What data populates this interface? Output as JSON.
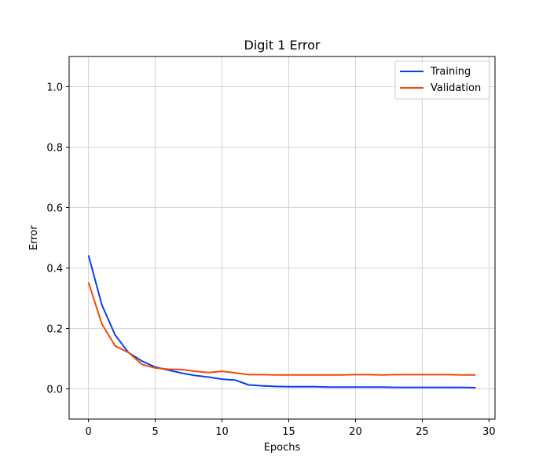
{
  "chart_data": {
    "type": "line",
    "title": "Digit 1 Error",
    "xlabel": "Epochs",
    "ylabel": "Error",
    "xlim": [
      -1.45,
      30.45
    ],
    "ylim": [
      -0.1,
      1.1
    ],
    "xticks": [
      0,
      5,
      10,
      15,
      20,
      25,
      30
    ],
    "xtick_labels": [
      "0",
      "5",
      "10",
      "15",
      "20",
      "25",
      "30"
    ],
    "yticks": [
      0.0,
      0.2,
      0.4,
      0.6,
      0.8,
      1.0
    ],
    "ytick_labels": [
      "0.0",
      "0.2",
      "0.4",
      "0.6",
      "0.8",
      "1.0"
    ],
    "grid": true,
    "legend_position": "top-right",
    "x": [
      0,
      1,
      2,
      3,
      4,
      5,
      6,
      7,
      8,
      9,
      10,
      11,
      12,
      13,
      14,
      15,
      16,
      17,
      18,
      19,
      20,
      21,
      22,
      23,
      24,
      25,
      26,
      27,
      28,
      29
    ],
    "series": [
      {
        "name": "Training",
        "color": "#0a3ff0",
        "values": [
          0.442,
          0.278,
          0.178,
          0.12,
          0.092,
          0.072,
          0.062,
          0.052,
          0.044,
          0.039,
          0.032,
          0.029,
          0.013,
          0.01,
          0.008,
          0.007,
          0.007,
          0.007,
          0.006,
          0.006,
          0.006,
          0.006,
          0.006,
          0.005,
          0.005,
          0.005,
          0.005,
          0.005,
          0.005,
          0.004
        ]
      },
      {
        "name": "Validation",
        "color": "#f04a0a",
        "values": [
          0.352,
          0.215,
          0.142,
          0.12,
          0.081,
          0.069,
          0.065,
          0.064,
          0.058,
          0.054,
          0.058,
          0.053,
          0.047,
          0.047,
          0.046,
          0.046,
          0.046,
          0.046,
          0.046,
          0.046,
          0.047,
          0.047,
          0.046,
          0.047,
          0.047,
          0.047,
          0.047,
          0.047,
          0.046,
          0.046
        ]
      }
    ]
  }
}
